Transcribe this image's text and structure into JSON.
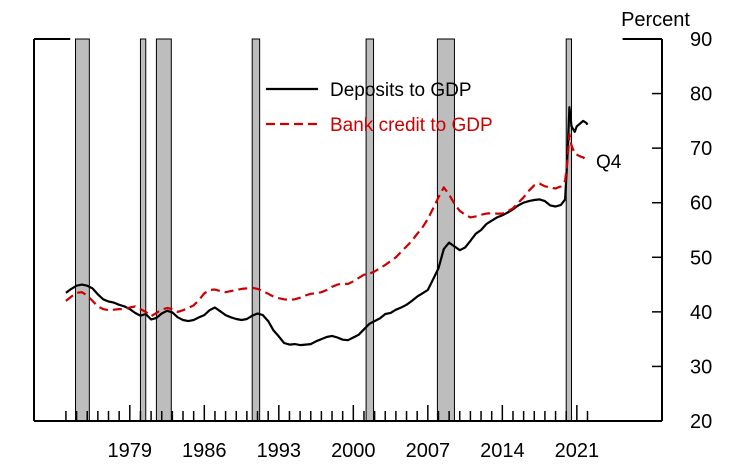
{
  "chart_data": {
    "type": "line",
    "title": "",
    "xlabel": "",
    "ylabel": "Percent",
    "y_axis_side": "right",
    "ylim": [
      20,
      90
    ],
    "xlim": [
      1970.0,
      2029.0
    ],
    "yticks": [
      20,
      30,
      40,
      50,
      60,
      70,
      80,
      90
    ],
    "xtick_labels": [
      "1979",
      "1986",
      "1993",
      "2000",
      "2007",
      "2014",
      "2021"
    ],
    "grid": false,
    "legend_placement": "top-center",
    "annotation": "Q4",
    "recessions": [
      [
        1973.9,
        1975.2
      ],
      [
        1980.0,
        1980.5
      ],
      [
        1981.5,
        1982.9
      ],
      [
        1990.5,
        1991.2
      ],
      [
        2001.2,
        2001.9
      ],
      [
        2007.9,
        2009.5
      ],
      [
        2020.0,
        2020.5
      ]
    ],
    "series": [
      {
        "name": "Deposits to GDP",
        "color": "#000000",
        "style": "solid",
        "points": [
          [
            1973.0,
            43.5
          ],
          [
            1973.5,
            44.2
          ],
          [
            1974.0,
            44.8
          ],
          [
            1974.5,
            45.0
          ],
          [
            1975.0,
            44.8
          ],
          [
            1975.5,
            44.3
          ],
          [
            1976.0,
            43.2
          ],
          [
            1976.5,
            42.3
          ],
          [
            1977.0,
            41.9
          ],
          [
            1977.5,
            41.7
          ],
          [
            1978.0,
            41.3
          ],
          [
            1978.5,
            41.0
          ],
          [
            1979.0,
            40.5
          ],
          [
            1979.5,
            39.8
          ],
          [
            1980.0,
            39.3
          ],
          [
            1980.5,
            39.6
          ],
          [
            1981.0,
            38.6
          ],
          [
            1981.5,
            38.9
          ],
          [
            1982.0,
            39.7
          ],
          [
            1982.5,
            40.2
          ],
          [
            1983.0,
            39.9
          ],
          [
            1983.5,
            39.0
          ],
          [
            1984.0,
            38.5
          ],
          [
            1984.5,
            38.3
          ],
          [
            1985.0,
            38.5
          ],
          [
            1985.5,
            39.0
          ],
          [
            1986.0,
            39.4
          ],
          [
            1986.5,
            40.3
          ],
          [
            1987.0,
            40.8
          ],
          [
            1987.5,
            40.1
          ],
          [
            1988.0,
            39.4
          ],
          [
            1988.5,
            39.0
          ],
          [
            1989.0,
            38.7
          ],
          [
            1989.5,
            38.5
          ],
          [
            1990.0,
            38.7
          ],
          [
            1990.5,
            39.3
          ],
          [
            1991.0,
            39.7
          ],
          [
            1991.5,
            39.4
          ],
          [
            1992.0,
            38.3
          ],
          [
            1992.5,
            36.6
          ],
          [
            1993.0,
            35.5
          ],
          [
            1993.5,
            34.3
          ],
          [
            1994.0,
            34.0
          ],
          [
            1994.5,
            34.1
          ],
          [
            1995.0,
            33.9
          ],
          [
            1995.5,
            34.0
          ],
          [
            1996.0,
            34.1
          ],
          [
            1996.5,
            34.6
          ],
          [
            1997.0,
            35.0
          ],
          [
            1997.5,
            35.4
          ],
          [
            1998.0,
            35.6
          ],
          [
            1998.5,
            35.3
          ],
          [
            1999.0,
            34.9
          ],
          [
            1999.5,
            34.8
          ],
          [
            2000.0,
            35.3
          ],
          [
            2000.5,
            35.8
          ],
          [
            2001.0,
            36.8
          ],
          [
            2001.5,
            37.8
          ],
          [
            2002.0,
            38.3
          ],
          [
            2002.5,
            38.8
          ],
          [
            2003.0,
            39.6
          ],
          [
            2003.5,
            39.8
          ],
          [
            2004.0,
            40.4
          ],
          [
            2004.5,
            40.8
          ],
          [
            2005.0,
            41.3
          ],
          [
            2005.5,
            42.0
          ],
          [
            2006.0,
            42.8
          ],
          [
            2006.5,
            43.4
          ],
          [
            2007.0,
            44.0
          ],
          [
            2007.5,
            46.0
          ],
          [
            2008.0,
            48.0
          ],
          [
            2008.5,
            51.5
          ],
          [
            2009.0,
            52.7
          ],
          [
            2009.5,
            52.0
          ],
          [
            2010.0,
            51.3
          ],
          [
            2010.5,
            51.8
          ],
          [
            2011.0,
            53.0
          ],
          [
            2011.5,
            54.3
          ],
          [
            2012.0,
            55.0
          ],
          [
            2012.5,
            56.1
          ],
          [
            2013.0,
            56.7
          ],
          [
            2013.5,
            57.3
          ],
          [
            2014.0,
            57.7
          ],
          [
            2014.5,
            58.2
          ],
          [
            2015.0,
            58.8
          ],
          [
            2015.5,
            59.5
          ],
          [
            2016.0,
            60.0
          ],
          [
            2016.5,
            60.3
          ],
          [
            2017.0,
            60.5
          ],
          [
            2017.5,
            60.6
          ],
          [
            2018.0,
            60.3
          ],
          [
            2018.5,
            59.5
          ],
          [
            2019.0,
            59.3
          ],
          [
            2019.5,
            59.6
          ],
          [
            2019.9,
            60.6
          ],
          [
            2020.1,
            68.0
          ],
          [
            2020.3,
            77.5
          ],
          [
            2020.5,
            74.0
          ],
          [
            2020.8,
            73.0
          ],
          [
            2021.0,
            74.0
          ],
          [
            2021.3,
            74.5
          ],
          [
            2021.6,
            75.0
          ],
          [
            2021.9,
            74.6
          ],
          [
            2022.0,
            74.3
          ]
        ]
      },
      {
        "name": "Bank credit to GDP",
        "color": "#cc0000",
        "style": "dashed",
        "points": [
          [
            1973.0,
            42.0
          ],
          [
            1973.5,
            42.8
          ],
          [
            1974.0,
            43.5
          ],
          [
            1974.5,
            43.6
          ],
          [
            1975.0,
            43.0
          ],
          [
            1975.5,
            42.0
          ],
          [
            1976.0,
            41.0
          ],
          [
            1976.5,
            40.5
          ],
          [
            1977.0,
            40.3
          ],
          [
            1977.5,
            40.4
          ],
          [
            1978.0,
            40.5
          ],
          [
            1978.5,
            40.5
          ],
          [
            1979.0,
            40.8
          ],
          [
            1979.5,
            41.0
          ],
          [
            1980.0,
            40.5
          ],
          [
            1980.5,
            40.0
          ],
          [
            1981.0,
            39.2
          ],
          [
            1981.5,
            39.8
          ],
          [
            1982.0,
            40.4
          ],
          [
            1982.5,
            40.7
          ],
          [
            1983.0,
            40.5
          ],
          [
            1983.5,
            40.0
          ],
          [
            1984.0,
            40.3
          ],
          [
            1984.5,
            40.7
          ],
          [
            1985.0,
            41.2
          ],
          [
            1985.5,
            42.2
          ],
          [
            1986.0,
            43.4
          ],
          [
            1986.5,
            44.0
          ],
          [
            1987.0,
            44.1
          ],
          [
            1987.5,
            43.8
          ],
          [
            1988.0,
            43.6
          ],
          [
            1988.5,
            43.8
          ],
          [
            1989.0,
            44.0
          ],
          [
            1989.5,
            44.2
          ],
          [
            1990.0,
            44.3
          ],
          [
            1990.5,
            44.4
          ],
          [
            1991.0,
            44.2
          ],
          [
            1991.5,
            43.8
          ],
          [
            1992.0,
            43.3
          ],
          [
            1992.5,
            42.8
          ],
          [
            1993.0,
            42.5
          ],
          [
            1993.5,
            42.3
          ],
          [
            1994.0,
            42.2
          ],
          [
            1994.5,
            42.3
          ],
          [
            1995.0,
            42.6
          ],
          [
            1995.5,
            43.0
          ],
          [
            1996.0,
            43.3
          ],
          [
            1996.5,
            43.4
          ],
          [
            1997.0,
            43.6
          ],
          [
            1997.5,
            44.0
          ],
          [
            1998.0,
            44.6
          ],
          [
            1998.5,
            45.0
          ],
          [
            1999.0,
            45.2
          ],
          [
            1999.5,
            45.1
          ],
          [
            2000.0,
            45.6
          ],
          [
            2000.5,
            46.2
          ],
          [
            2001.0,
            46.8
          ],
          [
            2001.5,
            47.0
          ],
          [
            2002.0,
            47.4
          ],
          [
            2002.5,
            48.0
          ],
          [
            2003.0,
            48.6
          ],
          [
            2003.5,
            49.3
          ],
          [
            2004.0,
            50.0
          ],
          [
            2004.5,
            51.0
          ],
          [
            2005.0,
            52.0
          ],
          [
            2005.5,
            53.0
          ],
          [
            2006.0,
            54.3
          ],
          [
            2006.5,
            55.5
          ],
          [
            2007.0,
            57.0
          ],
          [
            2007.5,
            59.0
          ],
          [
            2008.0,
            61.0
          ],
          [
            2008.5,
            62.8
          ],
          [
            2009.0,
            61.5
          ],
          [
            2009.5,
            59.8
          ],
          [
            2010.0,
            58.5
          ],
          [
            2010.5,
            57.8
          ],
          [
            2011.0,
            57.3
          ],
          [
            2011.5,
            57.5
          ],
          [
            2012.0,
            57.8
          ],
          [
            2012.5,
            58.0
          ],
          [
            2013.0,
            58.1
          ],
          [
            2013.5,
            58.0
          ],
          [
            2014.0,
            58.0
          ],
          [
            2014.5,
            58.4
          ],
          [
            2015.0,
            59.0
          ],
          [
            2015.5,
            60.0
          ],
          [
            2016.0,
            61.0
          ],
          [
            2016.5,
            62.2
          ],
          [
            2017.0,
            63.2
          ],
          [
            2017.5,
            63.5
          ],
          [
            2018.0,
            63.0
          ],
          [
            2018.5,
            62.8
          ],
          [
            2019.0,
            62.6
          ],
          [
            2019.5,
            63.0
          ],
          [
            2019.9,
            64.0
          ],
          [
            2020.1,
            67.5
          ],
          [
            2020.3,
            72.5
          ],
          [
            2020.5,
            70.5
          ],
          [
            2020.8,
            69.0
          ],
          [
            2021.0,
            68.8
          ],
          [
            2021.3,
            68.5
          ],
          [
            2021.6,
            68.3
          ],
          [
            2021.9,
            67.8
          ],
          [
            2022.0,
            67.6
          ]
        ]
      }
    ]
  }
}
